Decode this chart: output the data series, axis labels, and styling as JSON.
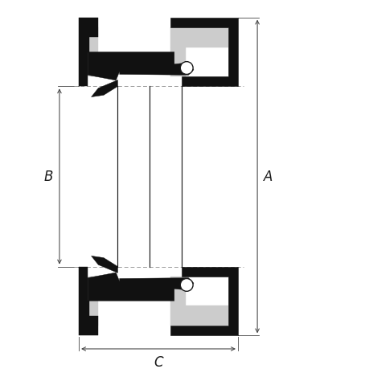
{
  "bg_color": "#ffffff",
  "line_color": "#1a1a1a",
  "fill_black": "#111111",
  "fill_gray": "#cccccc",
  "fill_white": "#ffffff",
  "dim_line_color": "#444444",
  "dashed_color": "#999999",
  "label_A": "A",
  "label_B": "B",
  "label_C": "C",
  "figsize": [
    4.6,
    4.6
  ],
  "dpi": 100,
  "xlim": [
    0,
    10
  ],
  "ylim": [
    0,
    10
  ]
}
